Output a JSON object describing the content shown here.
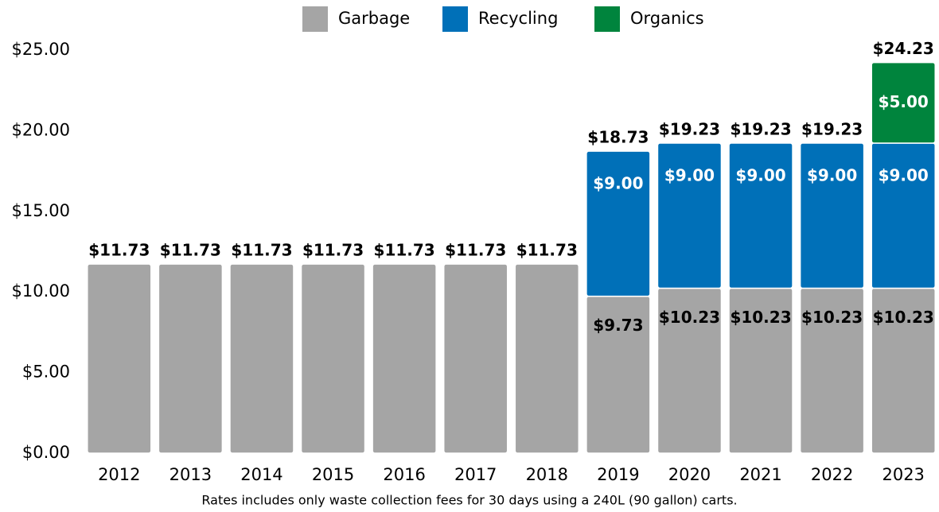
{
  "chart_data": {
    "type": "stacked_bar",
    "categories": [
      "2012",
      "2013",
      "2014",
      "2015",
      "2016",
      "2017",
      "2018",
      "2019",
      "2020",
      "2021",
      "2022",
      "2023"
    ],
    "series": [
      {
        "name": "Garbage",
        "color": "#a5a5a5",
        "values": [
          11.73,
          11.73,
          11.73,
          11.73,
          11.73,
          11.73,
          11.73,
          9.73,
          10.23,
          10.23,
          10.23,
          10.23
        ],
        "value_labels": [
          null,
          null,
          null,
          null,
          null,
          null,
          null,
          "$9.73",
          "$10.23",
          "$10.23",
          "$10.23",
          "$10.23"
        ]
      },
      {
        "name": "Recycling",
        "color": "#0070b8",
        "values": [
          null,
          null,
          null,
          null,
          null,
          null,
          null,
          9,
          9,
          9,
          9,
          9
        ],
        "value_labels": [
          null,
          null,
          null,
          null,
          null,
          null,
          null,
          "$9.00",
          "$9.00",
          "$9.00",
          "$9.00",
          "$9.00"
        ]
      },
      {
        "name": "Organics",
        "color": "#00843d",
        "values": [
          null,
          null,
          null,
          null,
          null,
          null,
          null,
          null,
          null,
          null,
          null,
          5
        ],
        "value_labels": [
          null,
          null,
          null,
          null,
          null,
          null,
          null,
          null,
          null,
          null,
          null,
          "$5.00"
        ]
      }
    ],
    "totals": [
      11.73,
      11.73,
      11.73,
      11.73,
      11.73,
      11.73,
      11.73,
      18.73,
      19.23,
      19.23,
      19.23,
      24.23
    ],
    "total_labels": [
      "$11.73",
      "$11.73",
      "$11.73",
      "$11.73",
      "$11.73",
      "$11.73",
      "$11.73",
      "$18.73",
      "$19.23",
      "$19.23",
      "$19.23",
      "$24.23"
    ],
    "ylim": [
      0,
      25
    ],
    "yticks": [
      {
        "value": 0,
        "label": "$0.00"
      },
      {
        "value": 5,
        "label": "$5.00"
      },
      {
        "value": 10,
        "label": "$10.00"
      },
      {
        "value": 15,
        "label": "$15.00"
      },
      {
        "value": 20,
        "label": "$20.00"
      },
      {
        "value": 25,
        "label": "$25.00"
      }
    ],
    "grid": false,
    "legend": "top",
    "note": "Rates includes only waste collection fees  for 30 days using a 240L (90 gallon) carts."
  }
}
